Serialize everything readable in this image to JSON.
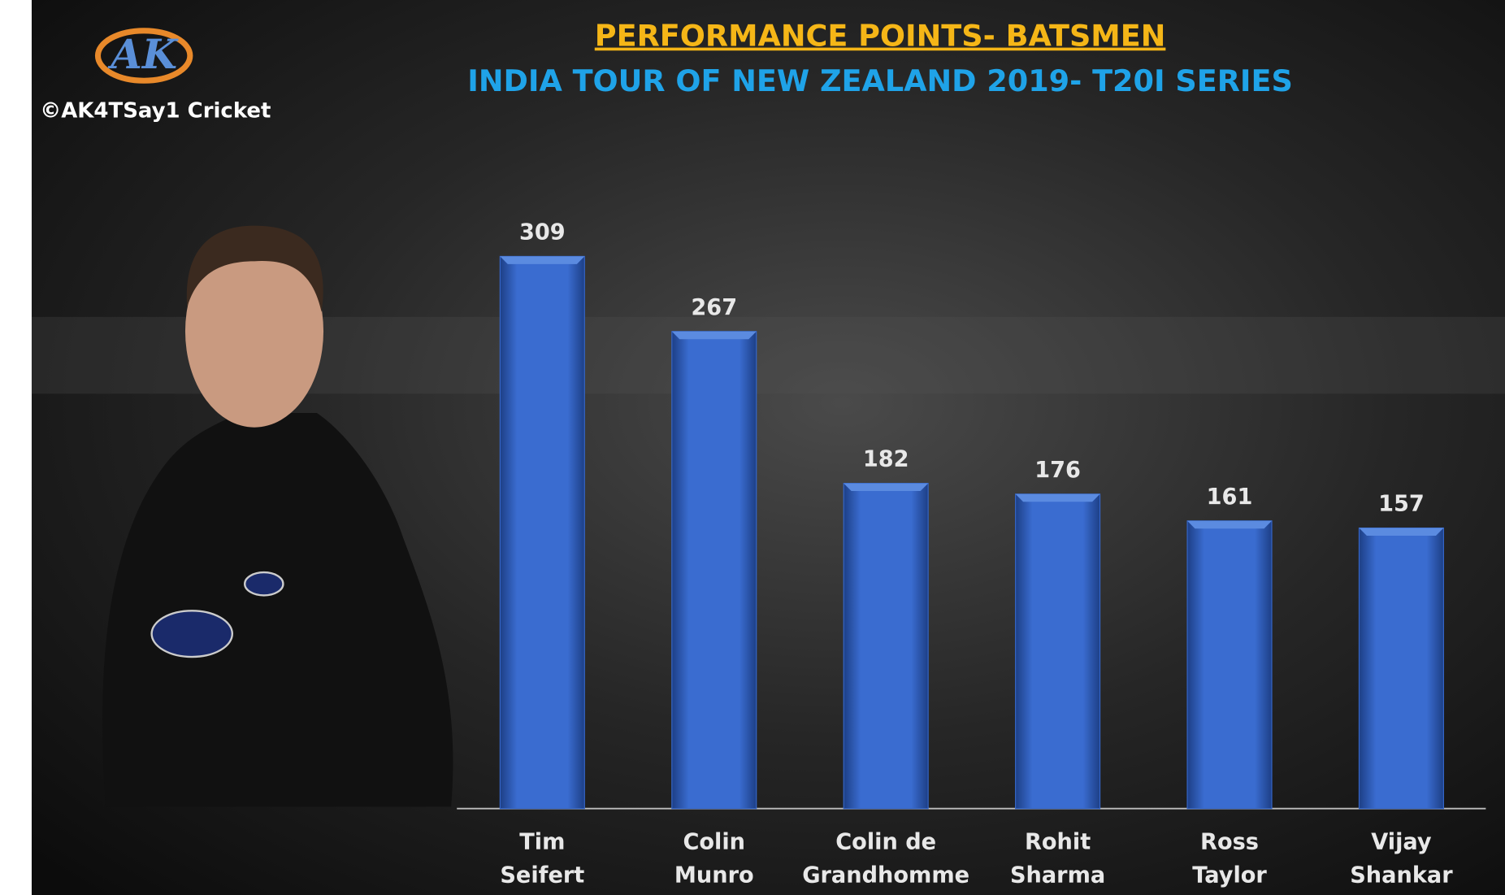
{
  "logo": {
    "mark": "AK",
    "credit": "©AK4TSay1 Cricket"
  },
  "chart_data": {
    "type": "bar",
    "title": "PERFORMANCE POINTS- BATSMEN",
    "subtitle": "INDIA TOUR OF NEW ZEALAND 2019- T20I SERIES",
    "categories": [
      "Tim\nSeifert",
      "Colin\nMunro",
      "Colin de\nGrandhomme",
      "Rohit\nSharma",
      "Ross\nTaylor",
      "Vijay\nShankar"
    ],
    "values": [
      309,
      267,
      182,
      176,
      161,
      157
    ],
    "color": "#3566c8"
  }
}
